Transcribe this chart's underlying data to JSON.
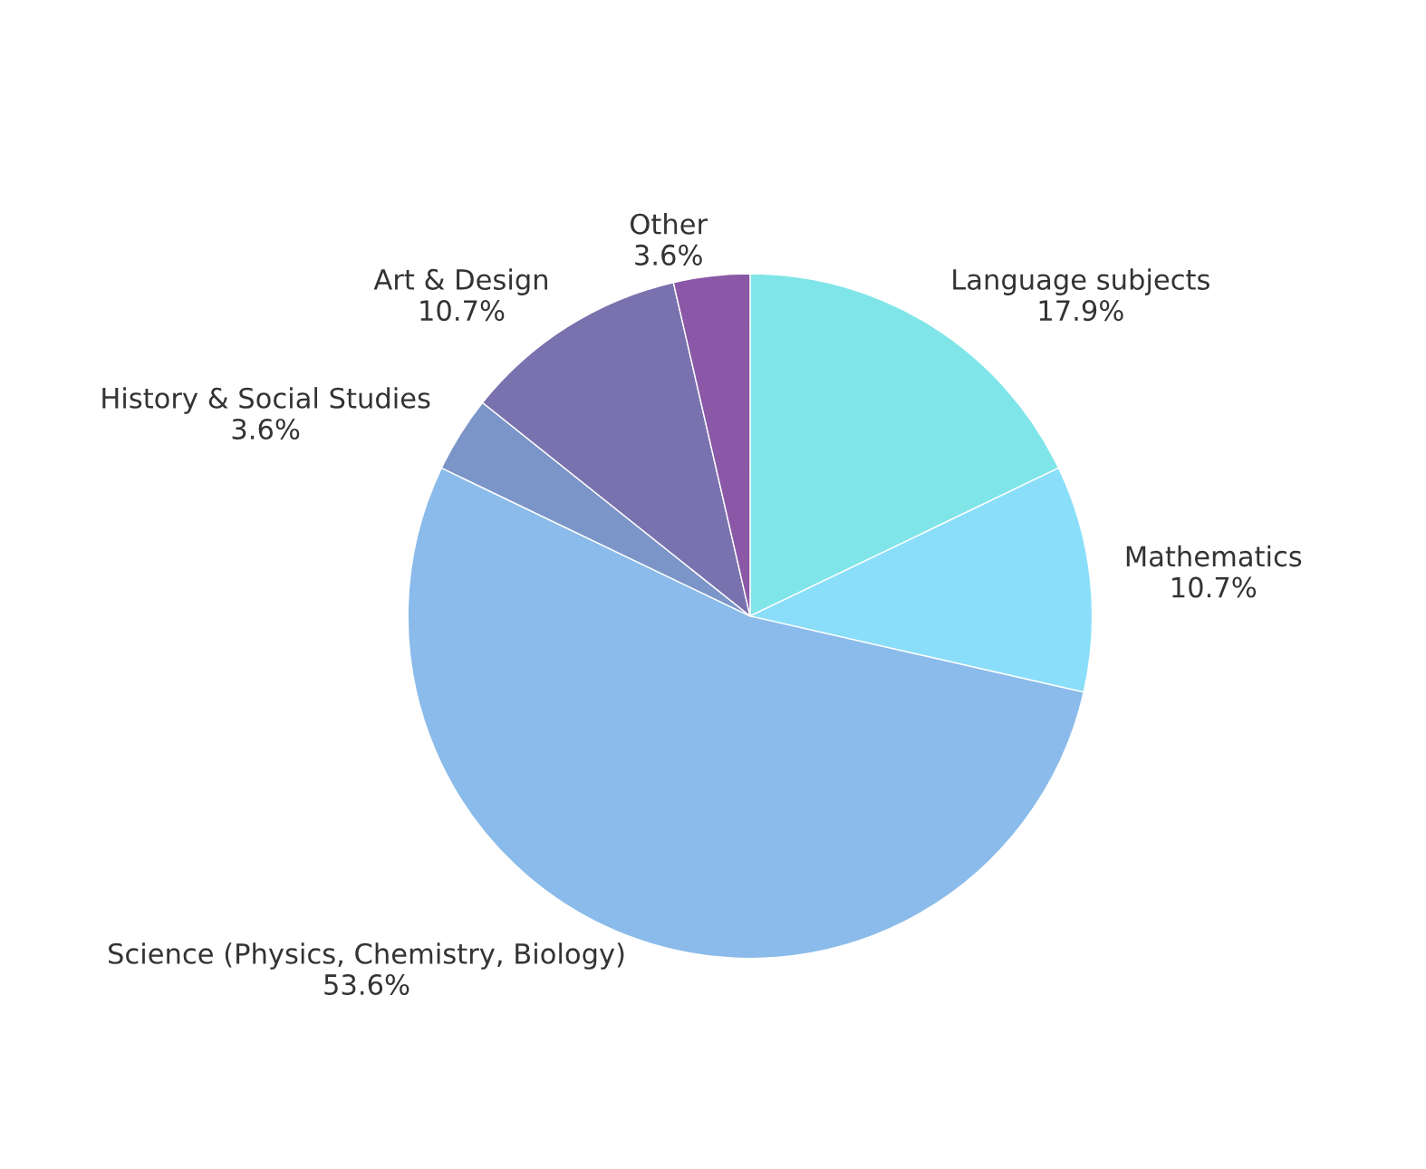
{
  "chart_data": {
    "type": "pie",
    "categories": [
      "Language subjects",
      "Mathematics",
      "Science (Physics, Chemistry, Biology)",
      "History & Social Studies",
      "Art & Design",
      "Other"
    ],
    "values": [
      17.9,
      10.7,
      53.6,
      3.6,
      10.7,
      3.6
    ],
    "value_labels": [
      "17.9%",
      "10.7%",
      "53.6%",
      "3.6%",
      "10.7%",
      "3.6%"
    ],
    "colors": [
      "#80e5e8",
      "#8adefa",
      "#8abbea",
      "#7b95c8",
      "#7a72ae",
      "#8a58a6"
    ]
  }
}
